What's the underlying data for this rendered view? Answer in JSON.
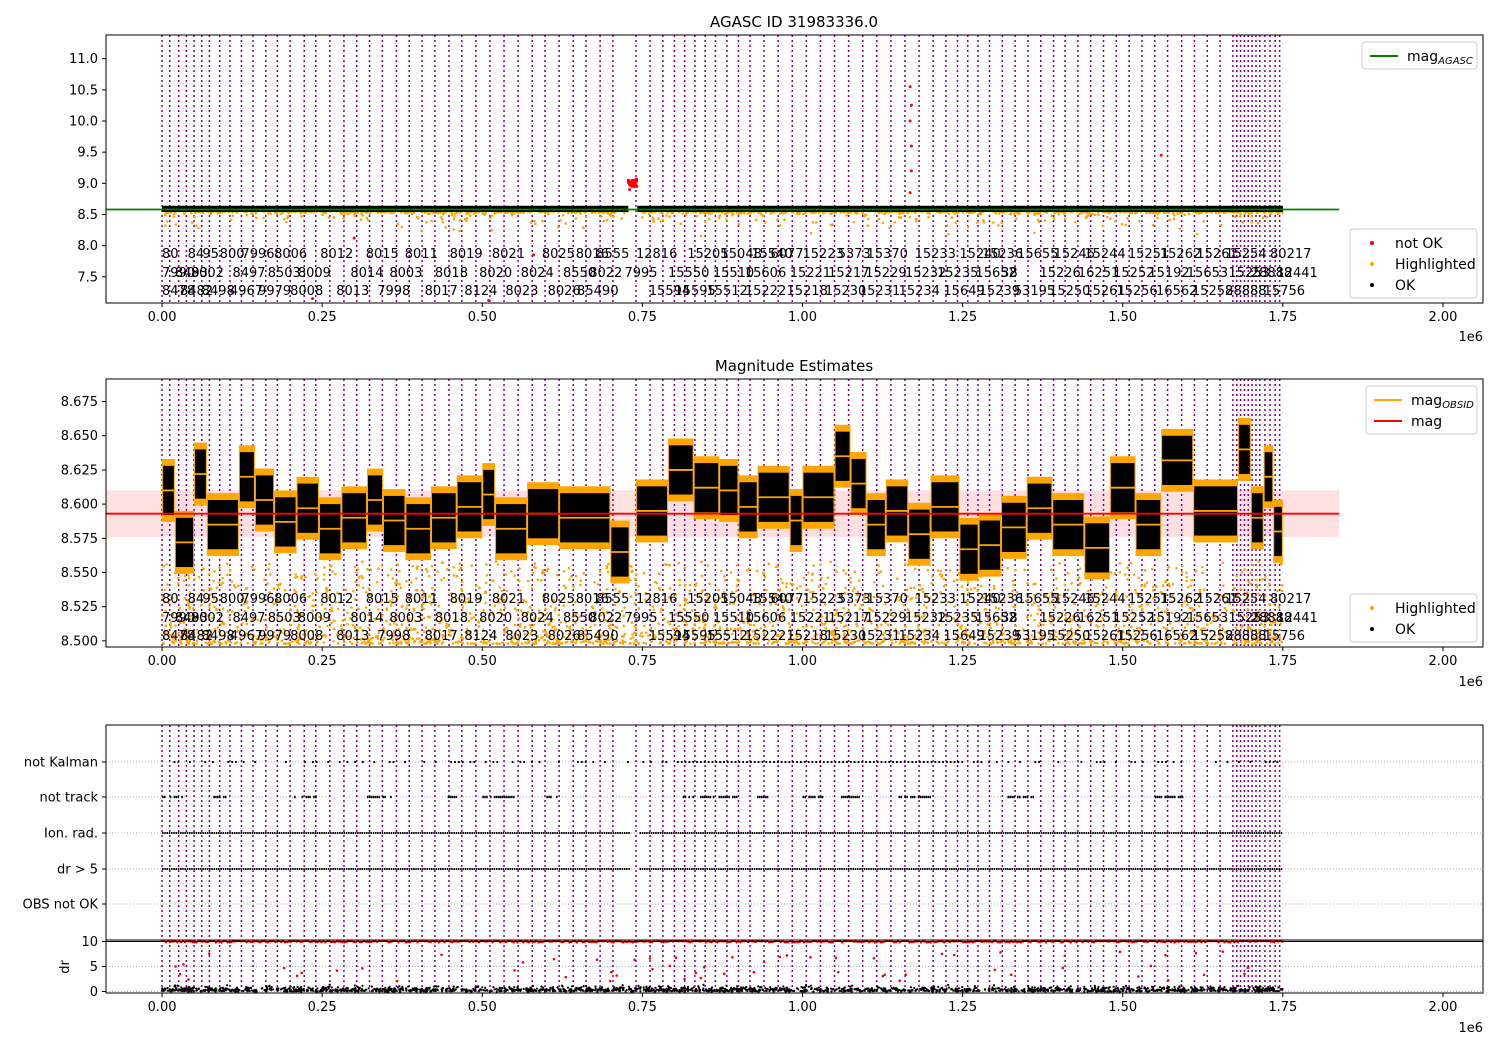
{
  "chart_data": [
    {
      "id": "agasc",
      "type": "scatter",
      "title": "AGASC ID 31983336.0",
      "xlabel": "",
      "ylabel": "",
      "x_offset_label": "1e6",
      "xlim": [
        -0.0875,
        2.0625
      ],
      "ylim": [
        7.08,
        11.38
      ],
      "xticks": [
        "0.00",
        "0.25",
        "0.50",
        "0.75",
        "1.00",
        "1.25",
        "1.50",
        "1.75",
        "2.00"
      ],
      "yticks": [
        "7.5",
        "8.0",
        "8.5",
        "9.0",
        "9.5",
        "10.0",
        "10.5",
        "11.0"
      ],
      "legend_top": {
        "position": "top-right",
        "entries": [
          {
            "label": "mag",
            "sub": "AGASC",
            "color": "#008000",
            "kind": "line"
          }
        ]
      },
      "legend_bottom": {
        "position": "bottom-right",
        "entries": [
          {
            "label": "not OK",
            "color": "#ff0000",
            "kind": "dot"
          },
          {
            "label": "Highlighted",
            "color": "#ffa500",
            "kind": "dot"
          },
          {
            "label": "OK",
            "color": "#000000",
            "kind": "dot"
          }
        ]
      },
      "mag_agasc": 8.58,
      "outliers": [
        {
          "x": 0.732,
          "y": 9.0
        },
        {
          "x": 0.735,
          "y": 9.05
        },
        {
          "x": 0.738,
          "y": 8.95
        },
        {
          "x": 0.74,
          "y": 9.03
        },
        {
          "x": 0.73,
          "y": 8.9
        },
        {
          "x": 1.168,
          "y": 10.55
        },
        {
          "x": 1.168,
          "y": 10.0
        },
        {
          "x": 1.17,
          "y": 9.6
        },
        {
          "x": 1.17,
          "y": 9.2
        },
        {
          "x": 1.168,
          "y": 8.85
        },
        {
          "x": 1.17,
          "y": 10.25
        },
        {
          "x": 1.56,
          "y": 9.45
        },
        {
          "x": 0.235,
          "y": 7.15
        },
        {
          "x": 0.51,
          "y": 7.12
        },
        {
          "x": 0.3,
          "y": 8.12
        },
        {
          "x": 0.58,
          "y": 7.85
        }
      ]
    },
    {
      "id": "magest",
      "type": "scatter",
      "title": "Magnitude Estimates",
      "xlabel": "",
      "ylabel": "",
      "x_offset_label": "1e6",
      "xlim": [
        -0.0875,
        2.0625
      ],
      "ylim": [
        8.4955,
        8.6915
      ],
      "xticks": [
        "0.00",
        "0.25",
        "0.50",
        "0.75",
        "1.00",
        "1.25",
        "1.50",
        "1.75",
        "2.00"
      ],
      "yticks": [
        "8.500",
        "8.525",
        "8.550",
        "8.575",
        "8.600",
        "8.625",
        "8.650",
        "8.675"
      ],
      "legend_top": {
        "position": "top-right",
        "entries": [
          {
            "label": "mag",
            "sub": "OBSID",
            "color": "#ffa500",
            "kind": "line"
          },
          {
            "label": "mag",
            "sub": "",
            "color": "#ff0000",
            "kind": "line"
          }
        ]
      },
      "legend_bottom": {
        "position": "bottom-right",
        "entries": [
          {
            "label": "Highlighted",
            "color": "#ffa500",
            "kind": "dot"
          },
          {
            "label": "OK",
            "color": "#000000",
            "kind": "dot"
          }
        ]
      },
      "mag": 8.593,
      "mag_band": [
        8.576,
        8.61
      ]
    },
    {
      "id": "flags",
      "type": "scatter",
      "xlabel": "",
      "ylabel": "",
      "x_offset_label": "1e6",
      "xlim": [
        -0.0875,
        2.0625
      ],
      "xticks": [
        "0.00",
        "0.25",
        "0.50",
        "0.75",
        "1.00",
        "1.25",
        "1.50",
        "1.75",
        "2.00"
      ],
      "categories": [
        "not Kalman",
        "not track",
        "Ion. rad.",
        "dr > 5",
        "OBS not OK"
      ]
    },
    {
      "id": "dr",
      "type": "scatter",
      "xlabel": "",
      "ylabel": "dr",
      "ylim": [
        -0.3,
        10.3
      ],
      "yticks": [
        "0",
        "5",
        "10"
      ],
      "threshold": 10
    }
  ],
  "obsid_segments": [
    {
      "s": 0.0,
      "e": 0.02,
      "m": 8.61
    },
    {
      "s": 0.02,
      "e": 0.05,
      "m": 8.572
    },
    {
      "s": 0.05,
      "e": 0.07,
      "m": 8.622
    },
    {
      "s": 0.07,
      "e": 0.12,
      "m": 8.585
    },
    {
      "s": 0.12,
      "e": 0.145,
      "m": 8.62
    },
    {
      "s": 0.145,
      "e": 0.175,
      "m": 8.603
    },
    {
      "s": 0.175,
      "e": 0.21,
      "m": 8.587
    },
    {
      "s": 0.21,
      "e": 0.245,
      "m": 8.597
    },
    {
      "s": 0.245,
      "e": 0.28,
      "m": 8.582
    },
    {
      "s": 0.28,
      "e": 0.32,
      "m": 8.59
    },
    {
      "s": 0.32,
      "e": 0.345,
      "m": 8.603
    },
    {
      "s": 0.345,
      "e": 0.38,
      "m": 8.588
    },
    {
      "s": 0.38,
      "e": 0.42,
      "m": 8.582
    },
    {
      "s": 0.42,
      "e": 0.46,
      "m": 8.59
    },
    {
      "s": 0.46,
      "e": 0.5,
      "m": 8.598
    },
    {
      "s": 0.5,
      "e": 0.52,
      "m": 8.607
    },
    {
      "s": 0.52,
      "e": 0.57,
      "m": 8.582
    },
    {
      "s": 0.57,
      "e": 0.62,
      "m": 8.593
    },
    {
      "s": 0.62,
      "e": 0.7,
      "m": 8.59
    },
    {
      "s": 0.7,
      "e": 0.73,
      "m": 8.565
    },
    {
      "s": 0.74,
      "e": 0.79,
      "m": 8.595
    },
    {
      "s": 0.79,
      "e": 0.83,
      "m": 8.625
    },
    {
      "s": 0.83,
      "e": 0.87,
      "m": 8.612
    },
    {
      "s": 0.87,
      "e": 0.9,
      "m": 8.61
    },
    {
      "s": 0.9,
      "e": 0.93,
      "m": 8.598
    },
    {
      "s": 0.93,
      "e": 0.98,
      "m": 8.605
    },
    {
      "s": 0.98,
      "e": 1.0,
      "m": 8.588
    },
    {
      "s": 1.0,
      "e": 1.05,
      "m": 8.605
    },
    {
      "s": 1.05,
      "e": 1.075,
      "m": 8.635
    },
    {
      "s": 1.075,
      "e": 1.1,
      "m": 8.615
    },
    {
      "s": 1.1,
      "e": 1.13,
      "m": 8.585
    },
    {
      "s": 1.13,
      "e": 1.165,
      "m": 8.595
    },
    {
      "s": 1.165,
      "e": 1.2,
      "m": 8.578
    },
    {
      "s": 1.2,
      "e": 1.245,
      "m": 8.598
    },
    {
      "s": 1.245,
      "e": 1.275,
      "m": 8.567
    },
    {
      "s": 1.275,
      "e": 1.31,
      "m": 8.57
    },
    {
      "s": 1.31,
      "e": 1.35,
      "m": 8.583
    },
    {
      "s": 1.35,
      "e": 1.39,
      "m": 8.597
    },
    {
      "s": 1.39,
      "e": 1.44,
      "m": 8.585
    },
    {
      "s": 1.44,
      "e": 1.48,
      "m": 8.568
    },
    {
      "s": 1.48,
      "e": 1.52,
      "m": 8.612
    },
    {
      "s": 1.52,
      "e": 1.56,
      "m": 8.585
    },
    {
      "s": 1.56,
      "e": 1.61,
      "m": 8.632
    },
    {
      "s": 1.61,
      "e": 1.68,
      "m": 8.595
    },
    {
      "s": 1.68,
      "e": 1.7,
      "m": 8.64
    },
    {
      "s": 1.7,
      "e": 1.72,
      "m": 8.59
    },
    {
      "s": 1.72,
      "e": 1.735,
      "m": 8.62
    },
    {
      "s": 1.735,
      "e": 1.75,
      "m": 8.58
    }
  ],
  "obsid_lines_x": [
    0.0,
    0.012,
    0.026,
    0.038,
    0.05,
    0.062,
    0.074,
    0.09,
    0.106,
    0.124,
    0.142,
    0.162,
    0.18,
    0.2,
    0.222,
    0.24,
    0.262,
    0.284,
    0.304,
    0.324,
    0.344,
    0.366,
    0.386,
    0.406,
    0.426,
    0.448,
    0.468,
    0.49,
    0.512,
    0.534,
    0.556,
    0.578,
    0.598,
    0.62,
    0.642,
    0.662,
    0.684,
    0.704,
    0.74,
    0.762,
    0.782,
    0.8,
    0.816,
    0.832,
    0.848,
    0.864,
    0.882,
    0.9,
    0.918,
    0.94,
    0.962,
    0.984,
    1.006,
    1.028,
    1.05,
    1.072,
    1.094,
    1.116,
    1.138,
    1.16,
    1.182,
    1.204,
    1.224,
    1.242,
    1.258,
    1.274,
    1.292,
    1.312,
    1.332,
    1.352,
    1.372,
    1.392,
    1.41,
    1.43,
    1.45,
    1.47,
    1.49,
    1.51,
    1.53,
    1.55,
    1.57,
    1.592,
    1.612,
    1.632,
    1.652,
    1.672,
    1.678,
    1.684,
    1.69,
    1.696,
    1.702,
    1.708,
    1.714,
    1.722,
    1.73,
    1.738,
    1.745
  ],
  "obsid_labels": {
    "top": [
      {
        "x": 0.0,
        "t": "80"
      },
      {
        "x": 0.04,
        "t": "84"
      },
      {
        "x": 0.063,
        "t": "95"
      },
      {
        "x": 0.09,
        "t": "800"
      },
      {
        "x": 0.124,
        "t": "7996"
      },
      {
        "x": 0.175,
        "t": "8006"
      },
      {
        "x": 0.247,
        "t": "8012"
      },
      {
        "x": 0.318,
        "t": "8015"
      },
      {
        "x": 0.379,
        "t": "8011"
      },
      {
        "x": 0.449,
        "t": "8019"
      },
      {
        "x": 0.515,
        "t": "8021"
      },
      {
        "x": 0.593,
        "t": "8025"
      },
      {
        "x": 0.646,
        "t": "8016"
      },
      {
        "x": 0.678,
        "t": "8555"
      },
      {
        "x": 0.74,
        "t": "12816"
      },
      {
        "x": 0.82,
        "t": "15205"
      },
      {
        "x": 0.872,
        "t": "15048"
      },
      {
        "x": 0.92,
        "t": "15540"
      },
      {
        "x": 0.95,
        "t": "6077"
      },
      {
        "x": 1.0,
        "t": "15223"
      },
      {
        "x": 1.055,
        "t": "5373"
      },
      {
        "x": 1.1,
        "t": "15370"
      },
      {
        "x": 1.175,
        "t": "15233"
      },
      {
        "x": 1.245,
        "t": "15240"
      },
      {
        "x": 1.28,
        "t": "15236"
      },
      {
        "x": 1.335,
        "t": "15655"
      },
      {
        "x": 1.392,
        "t": "15246"
      },
      {
        "x": 1.44,
        "t": "15244"
      },
      {
        "x": 1.508,
        "t": "15251"
      },
      {
        "x": 1.558,
        "t": "15262"
      },
      {
        "x": 1.615,
        "t": "15261"
      },
      {
        "x": 1.66,
        "t": "15254"
      },
      {
        "x": 1.73,
        "t": "80217"
      }
    ],
    "mid": [
      {
        "x": 0.0,
        "t": "7990"
      },
      {
        "x": 0.02,
        "t": "8493"
      },
      {
        "x": 0.045,
        "t": "8002"
      },
      {
        "x": 0.11,
        "t": "8497"
      },
      {
        "x": 0.165,
        "t": "8503"
      },
      {
        "x": 0.212,
        "t": "8009"
      },
      {
        "x": 0.294,
        "t": "8014"
      },
      {
        "x": 0.355,
        "t": "8003"
      },
      {
        "x": 0.426,
        "t": "8018"
      },
      {
        "x": 0.495,
        "t": "8020"
      },
      {
        "x": 0.56,
        "t": "8024"
      },
      {
        "x": 0.626,
        "t": "8550"
      },
      {
        "x": 0.667,
        "t": "8022"
      },
      {
        "x": 0.722,
        "t": "7995"
      },
      {
        "x": 0.79,
        "t": "15550"
      },
      {
        "x": 0.86,
        "t": "15510"
      },
      {
        "x": 0.91,
        "t": "15606"
      },
      {
        "x": 0.98,
        "t": "15221"
      },
      {
        "x": 1.04,
        "t": "15217"
      },
      {
        "x": 1.098,
        "t": "15229"
      },
      {
        "x": 1.16,
        "t": "15232"
      },
      {
        "x": 1.21,
        "t": "15235"
      },
      {
        "x": 1.27,
        "t": "15652"
      },
      {
        "x": 1.31,
        "t": "38"
      },
      {
        "x": 1.37,
        "t": "15226"
      },
      {
        "x": 1.43,
        "t": "16251"
      },
      {
        "x": 1.485,
        "t": "15252"
      },
      {
        "x": 1.54,
        "t": "15192"
      },
      {
        "x": 1.6,
        "t": "15653"
      },
      {
        "x": 1.665,
        "t": "15253"
      },
      {
        "x": 1.7,
        "t": "28888"
      },
      {
        "x": 1.74,
        "t": "12441"
      }
    ],
    "bot": [
      {
        "x": 0.0,
        "t": "8478"
      },
      {
        "x": 0.028,
        "t": "8482"
      },
      {
        "x": 0.062,
        "t": "8498"
      },
      {
        "x": 0.106,
        "t": "4967"
      },
      {
        "x": 0.15,
        "t": "9979"
      },
      {
        "x": 0.2,
        "t": "8008"
      },
      {
        "x": 0.272,
        "t": "8013"
      },
      {
        "x": 0.336,
        "t": "7998"
      },
      {
        "x": 0.41,
        "t": "8017"
      },
      {
        "x": 0.472,
        "t": "8124"
      },
      {
        "x": 0.536,
        "t": "8023"
      },
      {
        "x": 0.602,
        "t": "8026"
      },
      {
        "x": 0.648,
        "t": "8549"
      },
      {
        "x": 0.7,
        "t": "0"
      },
      {
        "x": 0.76,
        "t": "15594"
      },
      {
        "x": 0.8,
        "t": "15595"
      },
      {
        "x": 0.85,
        "t": "15512"
      },
      {
        "x": 0.91,
        "t": "15222"
      },
      {
        "x": 0.975,
        "t": "15218"
      },
      {
        "x": 1.035,
        "t": "15230"
      },
      {
        "x": 1.088,
        "t": "15231"
      },
      {
        "x": 1.15,
        "t": "15234"
      },
      {
        "x": 1.22,
        "t": "15649"
      },
      {
        "x": 1.275,
        "t": "15239"
      },
      {
        "x": 1.33,
        "t": "53195"
      },
      {
        "x": 1.385,
        "t": "15250"
      },
      {
        "x": 1.44,
        "t": "15261"
      },
      {
        "x": 1.49,
        "t": "15256"
      },
      {
        "x": 1.552,
        "t": "16562"
      },
      {
        "x": 1.608,
        "t": "15258"
      },
      {
        "x": 1.66,
        "t": "28888"
      },
      {
        "x": 1.72,
        "t": "15756"
      }
    ]
  },
  "flag_rows": {
    "not Kalman": {
      "mode": "sparse",
      "seed": 11
    },
    "not track": {
      "mode": "clusters",
      "spans": [
        [
          0.0,
          0.03
        ],
        [
          0.08,
          0.1
        ],
        [
          0.2,
          0.24
        ],
        [
          0.32,
          0.36
        ],
        [
          0.44,
          0.46
        ],
        [
          0.5,
          0.55
        ],
        [
          0.6,
          0.62
        ],
        [
          0.81,
          0.86
        ],
        [
          0.86,
          0.9
        ],
        [
          0.92,
          0.95
        ],
        [
          1.0,
          1.03
        ],
        [
          1.06,
          1.09
        ],
        [
          1.15,
          1.2
        ],
        [
          1.32,
          1.36
        ],
        [
          1.55,
          1.6
        ]
      ]
    },
    "Ion. rad.": {
      "mode": "dense"
    },
    "dr > 5": {
      "mode": "dense"
    },
    "OBS not OK": {
      "mode": "none"
    }
  }
}
